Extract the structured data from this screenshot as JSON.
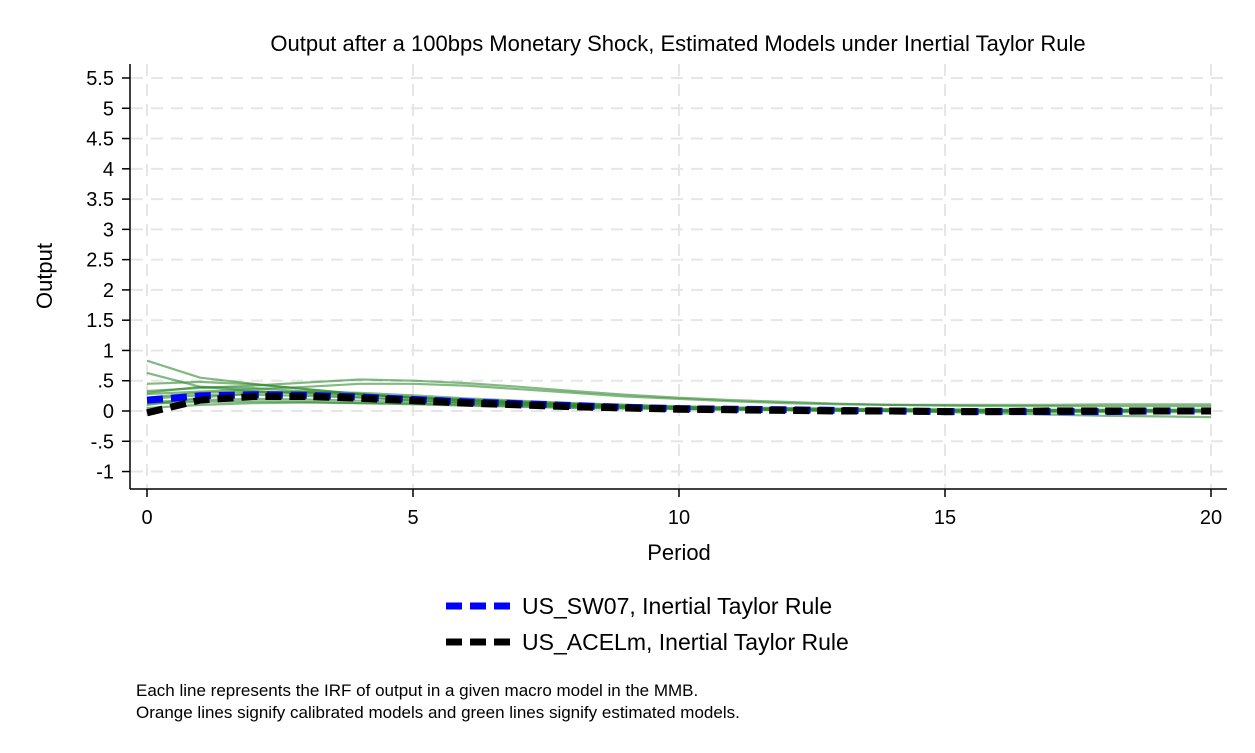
{
  "chart_data": {
    "type": "line",
    "title": "Output after a 100bps Monetary Shock, Estimated Models under Inertial Taylor Rule",
    "xlabel": "Period",
    "ylabel": "Output",
    "xlim": [
      0,
      20
    ],
    "ylim": [
      -1.25,
      5.65
    ],
    "x_ticks": [
      0,
      5,
      10,
      15,
      20
    ],
    "x_tick_labels": [
      "0",
      "5",
      "10",
      "15",
      "20"
    ],
    "y_ticks": [
      -1,
      -0.5,
      0,
      0.5,
      1,
      1.5,
      2,
      2.5,
      3,
      3.5,
      4,
      4.5,
      5,
      5.5
    ],
    "y_tick_labels": [
      "-1",
      "-.5",
      "0",
      ".5",
      "1",
      "1.5",
      "2",
      "2.5",
      "3",
      "3.5",
      "4",
      "4.5",
      "5",
      "5.5"
    ],
    "grid": true,
    "legend_position": "bottom",
    "x": [
      0,
      1,
      2,
      3,
      4,
      5,
      6,
      7,
      8,
      9,
      10,
      11,
      12,
      13,
      14,
      15,
      16,
      17,
      18,
      19,
      20
    ],
    "series": [
      {
        "name": "US_SW07, Inertial Taylor Rule",
        "color": "#0000ff",
        "style": "dashed",
        "legend": true,
        "values": [
          0.18,
          0.25,
          0.27,
          0.26,
          0.23,
          0.19,
          0.15,
          0.12,
          0.09,
          0.06,
          0.04,
          0.03,
          0.02,
          0.01,
          0.0,
          -0.01,
          -0.01,
          -0.01,
          -0.01,
          0.0,
          0.0
        ]
      },
      {
        "name": "US_ACELm, Inertial Taylor Rule",
        "color": "#000000",
        "style": "dashed",
        "legend": true,
        "values": [
          -0.03,
          0.18,
          0.24,
          0.24,
          0.21,
          0.17,
          0.13,
          0.1,
          0.07,
          0.05,
          0.03,
          0.02,
          0.01,
          0.0,
          0.0,
          -0.01,
          -0.01,
          0.0,
          0.0,
          0.0,
          0.0
        ]
      },
      {
        "color": "#2e8b2e",
        "style": "solid",
        "legend": false,
        "values": [
          0.83,
          0.55,
          0.45,
          0.36,
          0.28,
          0.22,
          0.17,
          0.13,
          0.1,
          0.07,
          0.05,
          0.04,
          0.03,
          0.02,
          0.01,
          0.0,
          0.0,
          0.0,
          0.0,
          0.0,
          0.0
        ]
      },
      {
        "color": "#2e8b2e",
        "style": "solid",
        "legend": false,
        "values": [
          0.63,
          0.4,
          0.33,
          0.28,
          0.23,
          0.18,
          0.14,
          0.11,
          0.08,
          0.06,
          0.04,
          0.03,
          0.02,
          0.01,
          0.0,
          0.0,
          0.0,
          0.0,
          0.0,
          0.0,
          0.0
        ]
      },
      {
        "color": "#2e8b2e",
        "style": "solid",
        "legend": false,
        "values": [
          0.45,
          0.48,
          0.44,
          0.36,
          0.28,
          0.22,
          0.17,
          0.13,
          0.1,
          0.08,
          0.06,
          0.05,
          0.04,
          0.03,
          0.03,
          0.02,
          0.02,
          0.02,
          0.02,
          0.02,
          0.02
        ]
      },
      {
        "color": "#2e8b2e",
        "style": "solid",
        "legend": false,
        "values": [
          0.33,
          0.38,
          0.42,
          0.47,
          0.52,
          0.5,
          0.46,
          0.4,
          0.33,
          0.27,
          0.22,
          0.18,
          0.15,
          0.12,
          0.1,
          0.09,
          0.08,
          0.08,
          0.08,
          0.08,
          0.08
        ]
      },
      {
        "color": "#2e8b2e",
        "style": "solid",
        "legend": false,
        "values": [
          0.28,
          0.32,
          0.36,
          0.4,
          0.45,
          0.45,
          0.42,
          0.36,
          0.3,
          0.24,
          0.2,
          0.16,
          0.13,
          0.11,
          0.1,
          0.1,
          0.1,
          0.1,
          0.11,
          0.11,
          0.11
        ]
      },
      {
        "color": "#2e8b2e",
        "style": "solid",
        "legend": false,
        "values": [
          0.3,
          0.4,
          0.38,
          0.32,
          0.27,
          0.22,
          0.18,
          0.14,
          0.11,
          0.08,
          0.06,
          0.04,
          0.03,
          0.02,
          0.01,
          0.01,
          0.01,
          0.01,
          0.01,
          0.01,
          0.01
        ]
      },
      {
        "color": "#2e8b2e",
        "style": "solid",
        "legend": false,
        "values": [
          0.22,
          0.3,
          0.32,
          0.3,
          0.27,
          0.23,
          0.19,
          0.15,
          0.12,
          0.1,
          0.08,
          0.06,
          0.05,
          0.04,
          0.03,
          0.03,
          0.02,
          0.02,
          0.02,
          0.02,
          0.02
        ]
      },
      {
        "color": "#2e8b2e",
        "style": "solid",
        "legend": false,
        "values": [
          0.1,
          0.22,
          0.3,
          0.32,
          0.3,
          0.26,
          0.21,
          0.17,
          0.13,
          0.1,
          0.07,
          0.05,
          0.04,
          0.03,
          0.02,
          0.01,
          0.01,
          0.01,
          0.0,
          0.0,
          0.0
        ]
      },
      {
        "color": "#2e8b2e",
        "style": "solid",
        "legend": false,
        "values": [
          0.15,
          0.18,
          0.2,
          0.19,
          0.17,
          0.15,
          0.12,
          0.1,
          0.08,
          0.06,
          0.04,
          0.03,
          0.02,
          0.01,
          0.0,
          -0.01,
          -0.02,
          -0.02,
          -0.02,
          -0.02,
          -0.02
        ]
      },
      {
        "color": "#2e8b2e",
        "style": "solid",
        "legend": false,
        "values": [
          0.05,
          0.1,
          0.13,
          0.14,
          0.13,
          0.12,
          0.1,
          0.08,
          0.06,
          0.05,
          0.04,
          0.03,
          0.02,
          0.01,
          0.0,
          -0.02,
          -0.04,
          -0.06,
          -0.08,
          -0.09,
          -0.1
        ]
      },
      {
        "color": "#2e8b2e",
        "style": "solid",
        "legend": false,
        "values": [
          0.12,
          0.15,
          0.16,
          0.15,
          0.13,
          0.11,
          0.09,
          0.07,
          0.05,
          0.04,
          0.03,
          0.02,
          0.01,
          0.0,
          0.0,
          0.0,
          0.0,
          0.0,
          0.0,
          0.0,
          0.0
        ]
      },
      {
        "color": "#2e8b2e",
        "style": "solid",
        "legend": false,
        "values": [
          0.2,
          0.26,
          0.27,
          0.25,
          0.22,
          0.18,
          0.14,
          0.11,
          0.08,
          0.06,
          0.04,
          0.03,
          0.02,
          0.01,
          0.0,
          0.0,
          0.0,
          0.0,
          0.0,
          0.0,
          0.0
        ]
      }
    ]
  },
  "note": {
    "line1": "Each line represents the IRF of output in a given macro model in the MMB.",
    "line2": "Orange lines signify calibrated models and green lines signify estimated models."
  }
}
